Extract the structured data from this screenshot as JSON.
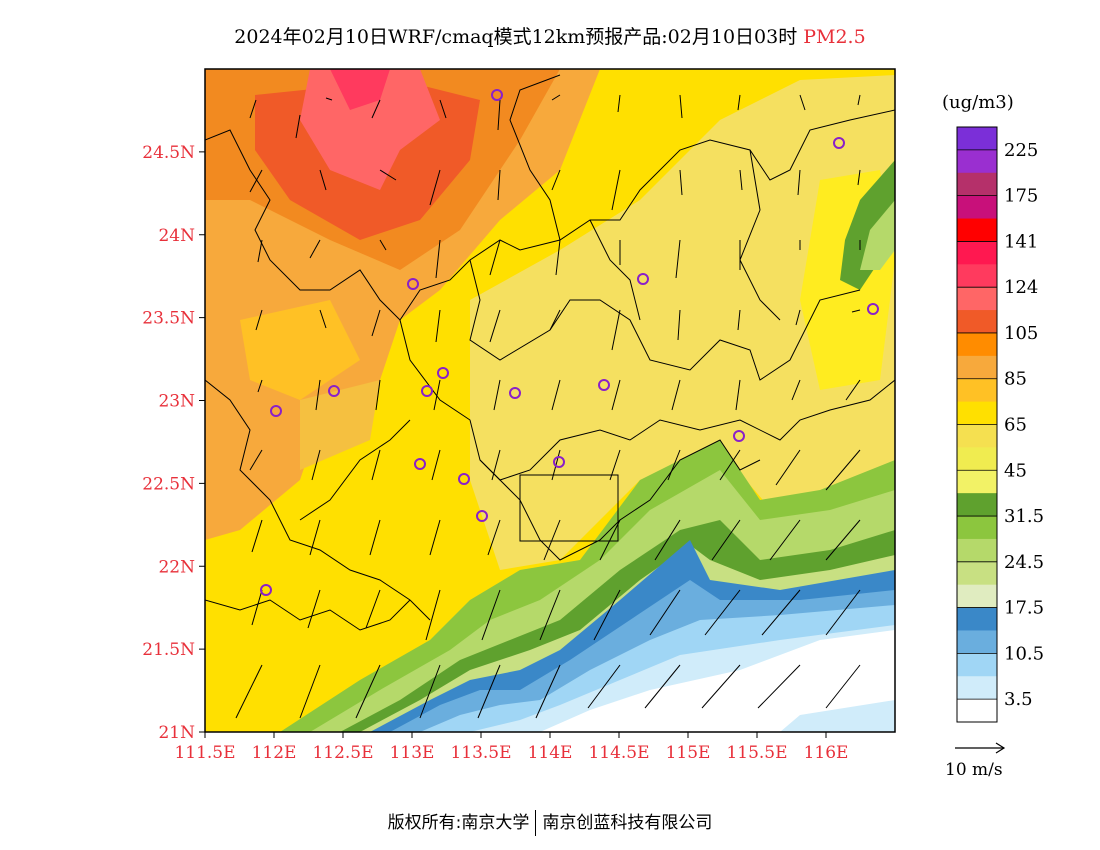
{
  "title": {
    "main": "2024年02月10日WRF/cmaq模式12km预报产品:02月10日03时",
    "species": "PM2.5"
  },
  "map": {
    "lat_ticks": [
      "21N",
      "21.5N",
      "22N",
      "22.5N",
      "23N",
      "23.5N",
      "24N",
      "24.5N"
    ],
    "lon_ticks": [
      "111.5E",
      "112E",
      "112.5E",
      "113E",
      "113.5E",
      "114E",
      "114.5E",
      "115E",
      "115.5E",
      "116E"
    ],
    "lon_range": [
      111.5,
      116.5
    ],
    "lat_range": [
      21.0,
      25.0
    ]
  },
  "colorbar": {
    "unit": "(ug/m3)",
    "labels": [
      "225",
      "175",
      "141",
      "124",
      "105",
      "85",
      "65",
      "45",
      "31.5",
      "24.5",
      "17.5",
      "10.5",
      "3.5"
    ],
    "colors": [
      "#7b2fd8",
      "#9a2fd0",
      "#b5306a",
      "#c8107a",
      "#ff0000",
      "#ff1850",
      "#ff3a5e",
      "#ff6666",
      "#f05a28",
      "#ff8c00",
      "#f7a93c",
      "#ffc125",
      "#ffe000",
      "#f5e050",
      "#f0ec50",
      "#f2f266",
      "#5fa12e",
      "#8cc63e",
      "#b5d96a",
      "#c8e082",
      "#e0ecc0",
      "#3a88c8",
      "#6aaede",
      "#a0d6f5",
      "#d0ecfa",
      "#ffffff"
    ]
  },
  "reference_vector": {
    "label": "10 m/s"
  },
  "footer": {
    "left": "版权所有:南京大学",
    "right": "南京创蓝科技有限公司"
  }
}
